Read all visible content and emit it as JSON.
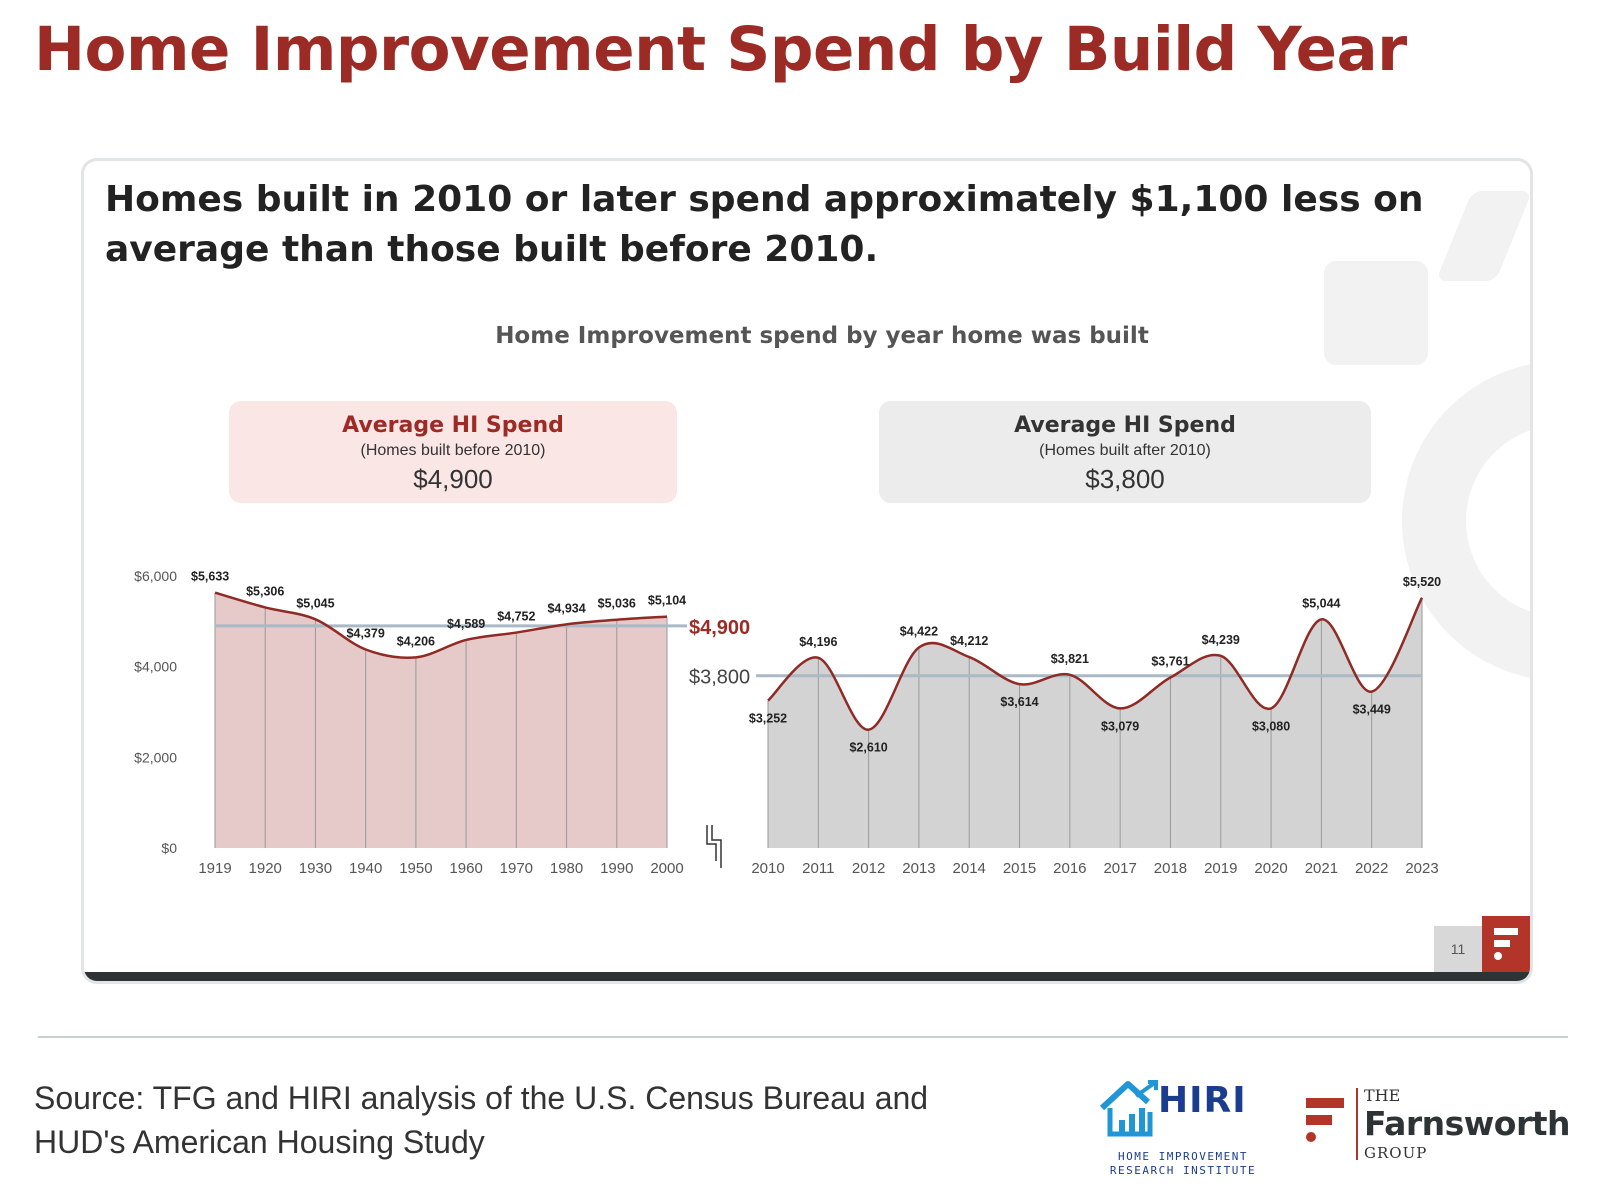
{
  "page": {
    "title": "Home Improvement Spend by Build Year",
    "headline": "Homes built in 2010 or later spend approximately $1,100 less on average than those built before 2010.",
    "source": "Source: TFG and HIRI analysis of the U.S. Census Bureau and HUD's American Housing Study",
    "page_number": "11"
  },
  "kpis": {
    "pre": {
      "title": "Average HI Spend",
      "subtitle": "(Homes built before 2010)",
      "value": "$4,900"
    },
    "post": {
      "title": "Average HI Spend",
      "subtitle": "(Homes built after 2010)",
      "value": "$3,800"
    }
  },
  "logos": {
    "hiri_name": "HIRI",
    "hiri_sub": "HOME IMPROVEMENT RESEARCH INSTITUTE",
    "tfg_the": "THE",
    "tfg_name": "Farnsworth",
    "tfg_group": "GROUP"
  },
  "colors": {
    "title": "#9c2b25",
    "pre_fill": "#e6c9c9",
    "post_fill": "#d3d3d3",
    "line": "#8f2b24",
    "avg_line": "#a9b9c5"
  },
  "chart_data": {
    "type": "area",
    "title": "Home Improvement spend by year home was built",
    "ylim": [
      0,
      6000
    ],
    "yticks": [
      "$0",
      "$2,000",
      "$4,000",
      "$6,000"
    ],
    "grid": false,
    "series": [
      {
        "categories": [
          "1919",
          "1920",
          "1930",
          "1940",
          "1950",
          "1960",
          "1970",
          "1980",
          "1990",
          "2000"
        ],
        "values": [
          5633,
          5306,
          5045,
          4379,
          4206,
          4589,
          4752,
          4934,
          5036,
          5104
        ],
        "labels": [
          "$5,633",
          "$5,306",
          "$5,045",
          "$4,379",
          "$4,206",
          "$4,589",
          "$4,752",
          "$4,934",
          "$5,036",
          "$5,104"
        ],
        "average": 4900,
        "average_label": "$4,900"
      },
      {
        "categories": [
          "2010",
          "2011",
          "2012",
          "2013",
          "2014",
          "2015",
          "2016",
          "2017",
          "2018",
          "2019",
          "2020",
          "2021",
          "2022",
          "2023"
        ],
        "values": [
          3252,
          4196,
          2610,
          4422,
          4212,
          3614,
          3821,
          3079,
          3761,
          4239,
          3080,
          5044,
          3449,
          5520
        ],
        "labels": [
          "$3,252",
          "$4,196",
          "$2,610",
          "$4,422",
          "$4,212",
          "$3,614",
          "$3,821",
          "$3,079",
          "$3,761",
          "$4,239",
          "$3,080",
          "$5,044",
          "$3,449",
          "$5,520"
        ],
        "average": 3800,
        "average_label": "$3,800"
      }
    ]
  }
}
